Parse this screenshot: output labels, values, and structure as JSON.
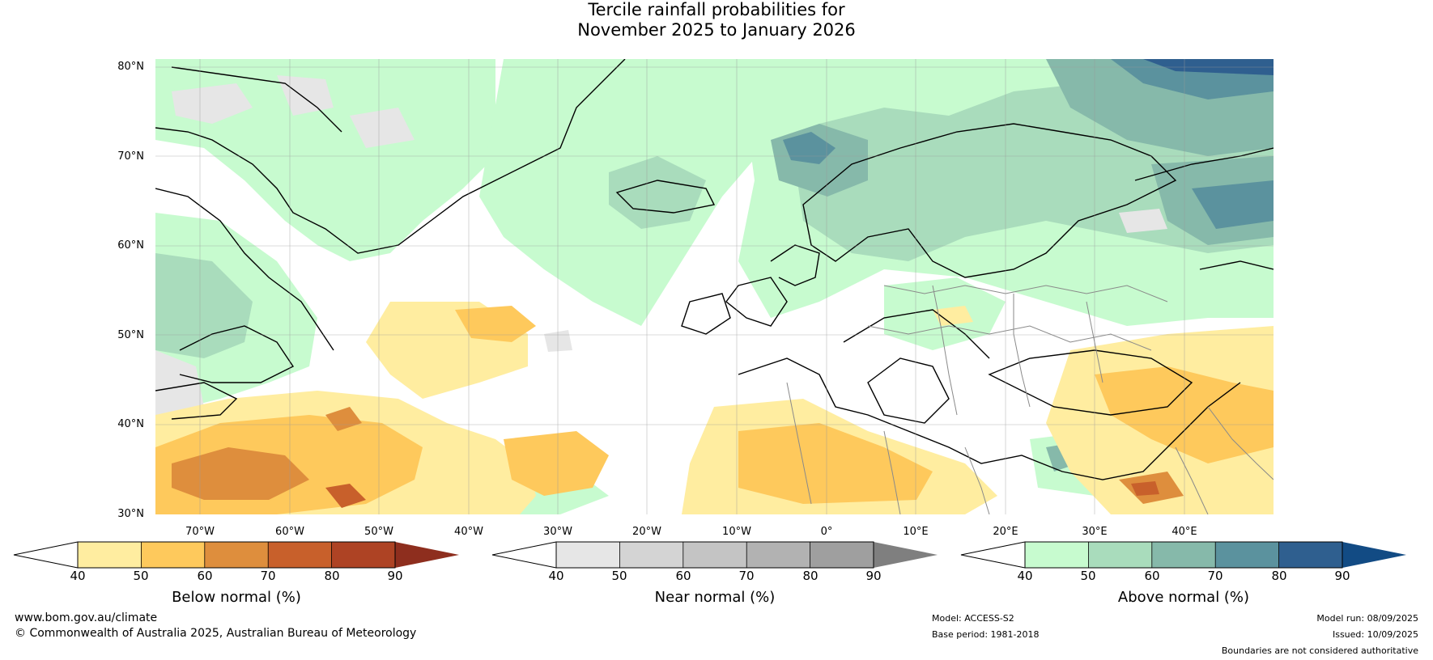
{
  "title_line1": "Tercile rainfall probabilities for",
  "title_line2": "November 2025 to January 2026",
  "lat_labels": [
    "80°N",
    "70°N",
    "60°N",
    "50°N",
    "40°N",
    "30°N"
  ],
  "lon_labels": [
    "70°W",
    "60°W",
    "50°W",
    "40°W",
    "30°W",
    "20°W",
    "10°W",
    "0°",
    "10°E",
    "20°E",
    "30°E",
    "40°E"
  ],
  "colorbars": [
    {
      "title": "Below normal (%)",
      "ticks": [
        "40",
        "50",
        "60",
        "70",
        "80",
        "90"
      ],
      "colors": [
        "#ffeda0",
        "#fec95c",
        "#de8e3d",
        "#c8602b",
        "#ae4324"
      ],
      "arrow_color": "#8e2e1e"
    },
    {
      "title": "Near normal (%)",
      "ticks": [
        "40",
        "50",
        "60",
        "70",
        "80",
        "90"
      ],
      "colors": [
        "#e6e6e6",
        "#d4d4d4",
        "#c4c4c4",
        "#b2b2b2",
        "#9f9f9f"
      ],
      "arrow_color": "#7f7f7f"
    },
    {
      "title": "Above normal (%)",
      "ticks": [
        "40",
        "50",
        "60",
        "70",
        "80",
        "90"
      ],
      "colors": [
        "#c7fbcf",
        "#a9dcbc",
        "#86b9aa",
        "#5b929e",
        "#2f5f8f"
      ],
      "arrow_color": "#124b84"
    }
  ],
  "footer": {
    "website": "www.bom.gov.au/climate",
    "copyright": "© Commonwealth of Australia 2025, Australian Bureau of Meteorology",
    "model": "Model: ACCESS-S2",
    "base_period": "Base period: 1981-2018",
    "model_run": "Model run: 08/09/2025",
    "issued": "Issued: 10/09/2025",
    "disclaimer": "Boundaries are not considered authoritative"
  }
}
